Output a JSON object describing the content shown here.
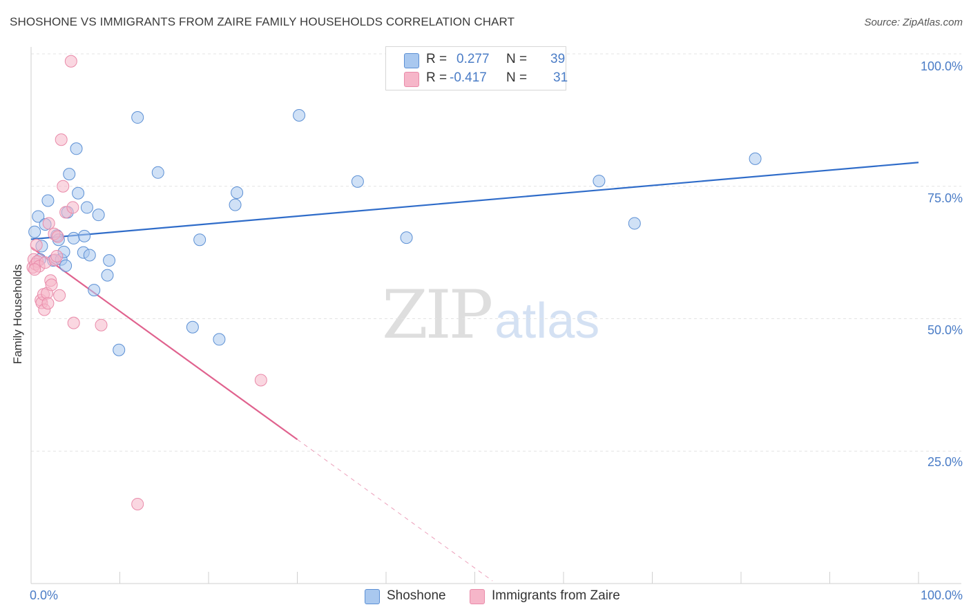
{
  "header": {
    "title": "SHOSHONE VS IMMIGRANTS FROM ZAIRE FAMILY HOUSEHOLDS CORRELATION CHART",
    "source": "Source: ZipAtlas.com"
  },
  "watermark": {
    "zip": "ZIP",
    "atlas": "atlas"
  },
  "legend": {
    "rows": [
      {
        "r_label": "R =",
        "r_value": "0.277",
        "n_label": "N =",
        "n_value": "39"
      },
      {
        "r_label": "R =",
        "r_value": "-0.417",
        "n_label": "N =",
        "n_value": "31"
      }
    ]
  },
  "axes": {
    "ylabel": "Family Households",
    "x_min_label": "0.0%",
    "x_max_label": "100.0%",
    "y_ticks": [
      "100.0%",
      "75.0%",
      "50.0%",
      "25.0%"
    ]
  },
  "colors": {
    "blue_fill": "#a9c8ef",
    "blue_stroke": "#5b8fd4",
    "blue_line": "#2f6cc9",
    "pink_fill": "#f6b6c9",
    "pink_stroke": "#e98aa9",
    "pink_line": "#e0628e",
    "tick_text": "#4a7cc6",
    "grid": "#e3e3e3"
  },
  "chart_data": {
    "type": "scatter",
    "title": "SHOSHONE VS IMMIGRANTS FROM ZAIRE FAMILY HOUSEHOLDS CORRELATION CHART",
    "xlabel": "",
    "ylabel": "Family Households",
    "xlim": [
      0,
      100
    ],
    "ylim": [
      0,
      100
    ],
    "y_ticks": [
      25,
      50,
      75,
      100
    ],
    "grid": true,
    "series": [
      {
        "name": "Shoshone",
        "color": "blue",
        "r": 0.277,
        "n": 39,
        "trend": {
          "x0": 0,
          "y0": 65.0,
          "x1": 100,
          "y1": 79.5,
          "solid_until": 100
        },
        "points": [
          [
            0.4,
            66.4
          ],
          [
            0.8,
            69.3
          ],
          [
            1.2,
            63.7
          ],
          [
            1.6,
            67.8
          ],
          [
            1.9,
            72.3
          ],
          [
            2.5,
            61.0
          ],
          [
            2.9,
            65.7
          ],
          [
            3.1,
            64.9
          ],
          [
            3.4,
            61.2
          ],
          [
            3.7,
            62.6
          ],
          [
            3.9,
            60.0
          ],
          [
            4.1,
            70.1
          ],
          [
            4.3,
            77.3
          ],
          [
            4.8,
            65.2
          ],
          [
            5.1,
            82.1
          ],
          [
            5.3,
            73.7
          ],
          [
            5.9,
            62.5
          ],
          [
            6.0,
            65.6
          ],
          [
            6.3,
            71.0
          ],
          [
            6.6,
            62.0
          ],
          [
            7.1,
            55.4
          ],
          [
            7.6,
            69.6
          ],
          [
            8.6,
            58.2
          ],
          [
            8.8,
            61.0
          ],
          [
            9.9,
            44.1
          ],
          [
            12.0,
            88.0
          ],
          [
            14.3,
            77.6
          ],
          [
            18.2,
            48.4
          ],
          [
            19.0,
            64.9
          ],
          [
            21.2,
            46.1
          ],
          [
            23.0,
            71.5
          ],
          [
            23.2,
            73.8
          ],
          [
            30.2,
            88.4
          ],
          [
            36.8,
            75.9
          ],
          [
            42.3,
            65.3
          ],
          [
            64.0,
            76.0
          ],
          [
            68.0,
            68.0
          ],
          [
            81.6,
            80.2
          ],
          [
            1.0,
            61.2
          ]
        ]
      },
      {
        "name": "Immigrants from Zaire",
        "color": "pink",
        "r": -0.417,
        "n": 31,
        "trend": {
          "x0": 0,
          "y0": 63.5,
          "x1": 30.0,
          "y1": 27.2,
          "dashed_to_x": 52.0,
          "dashed_to_y": 0.5
        },
        "points": [
          [
            0.2,
            59.7
          ],
          [
            0.3,
            61.2
          ],
          [
            0.5,
            60.3
          ],
          [
            0.6,
            63.9
          ],
          [
            0.7,
            60.8
          ],
          [
            0.9,
            59.9
          ],
          [
            1.1,
            53.5
          ],
          [
            1.2,
            53.0
          ],
          [
            1.4,
            54.6
          ],
          [
            1.5,
            51.7
          ],
          [
            1.6,
            60.6
          ],
          [
            1.8,
            54.8
          ],
          [
            1.9,
            52.9
          ],
          [
            2.0,
            68.0
          ],
          [
            2.2,
            57.2
          ],
          [
            2.3,
            56.4
          ],
          [
            2.6,
            66.0
          ],
          [
            2.7,
            61.1
          ],
          [
            2.9,
            61.8
          ],
          [
            3.0,
            65.5
          ],
          [
            3.2,
            54.4
          ],
          [
            3.4,
            83.8
          ],
          [
            3.6,
            75.0
          ],
          [
            3.9,
            70.1
          ],
          [
            4.5,
            98.6
          ],
          [
            4.7,
            71.0
          ],
          [
            4.8,
            49.2
          ],
          [
            7.9,
            48.8
          ],
          [
            12.0,
            15.0
          ],
          [
            25.9,
            38.4
          ],
          [
            0.4,
            59.3
          ]
        ]
      }
    ]
  },
  "bottom_legend": {
    "series_1": "Shoshone",
    "series_2": "Immigrants from Zaire"
  }
}
